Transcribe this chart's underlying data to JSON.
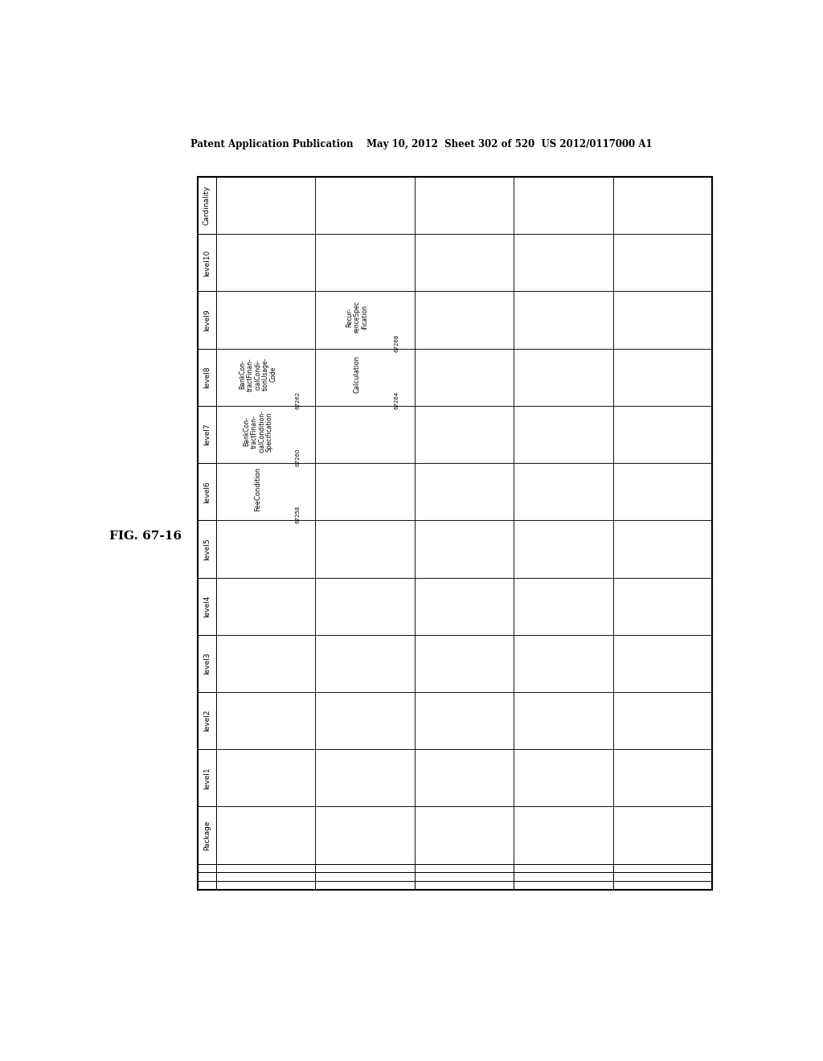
{
  "title": "FIG. 67-16",
  "header_text": "Patent Application Publication    May 10, 2012  Sheet 302 of 520  US 2012/0117000 A1",
  "row_headers": [
    "Cardinality",
    "level10",
    "level9",
    "level8",
    "level7",
    "level6",
    "level5",
    "level4",
    "level3",
    "level2",
    "level1",
    "Package"
  ],
  "num_data_cols": 5,
  "num_footer_rows": 3,
  "bg_color": "#ffffff",
  "line_color": "#000000",
  "text_color": "#000000",
  "font_size_header": 6.5,
  "font_size_cell": 6.0,
  "font_size_id": 5.0,
  "font_size_title": 11,
  "font_size_patent": 8.5
}
